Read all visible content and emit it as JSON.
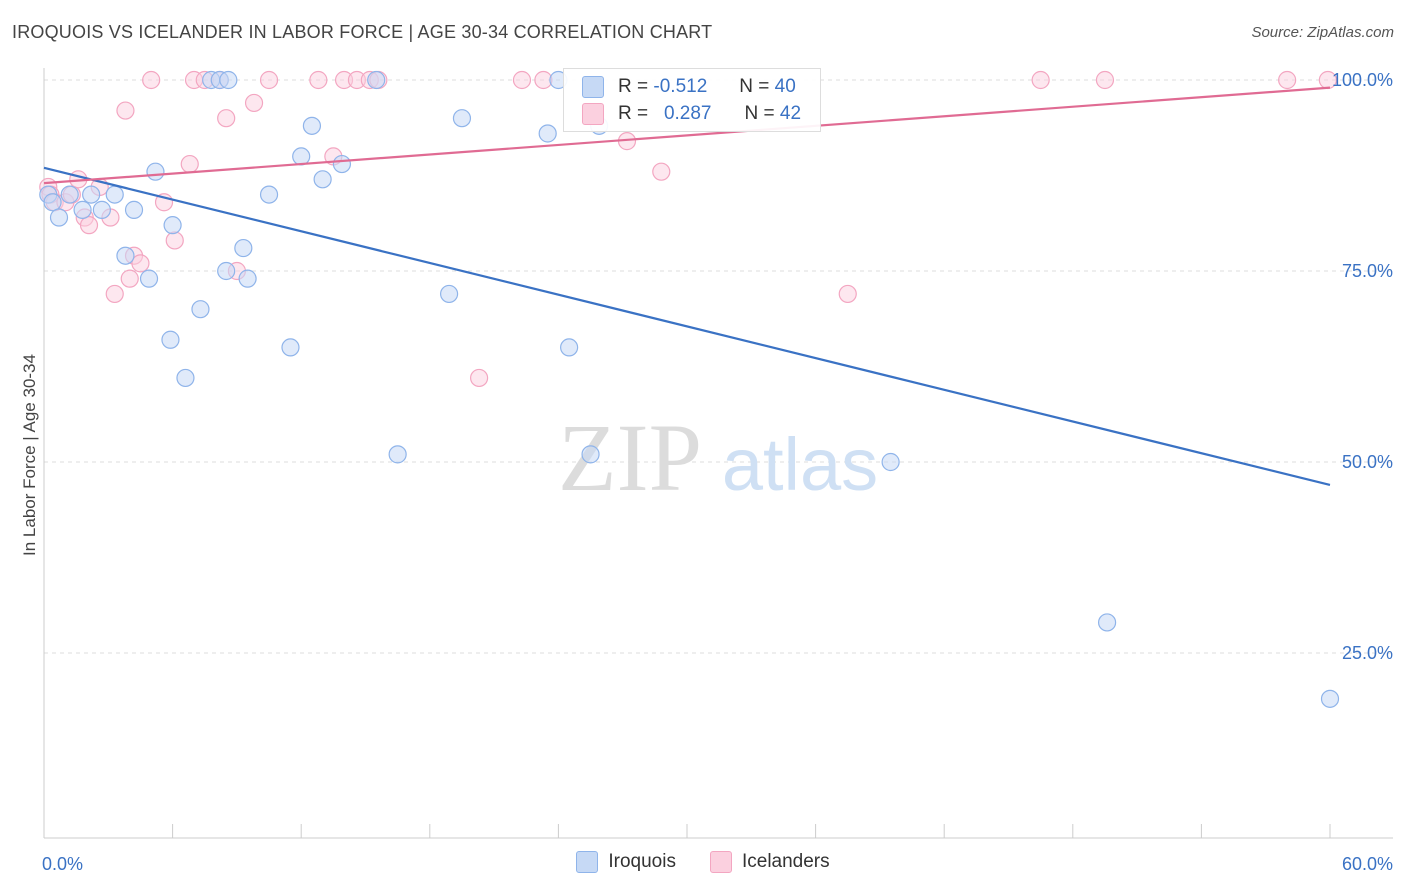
{
  "title": "IROQUOIS VS ICELANDER IN LABOR FORCE | AGE 30-34 CORRELATION CHART",
  "source": "Source: ZipAtlas.com",
  "watermark": {
    "zip": "ZIP",
    "atlas": "atlas"
  },
  "colors": {
    "iroquois": "#8fb4ea",
    "iroquois_line": "#3a72c4",
    "icelanders": "#f3a6c1",
    "icelanders_line": "#e06b93",
    "axis_label": "#3a72c4"
  },
  "stats": {
    "rows": [
      {
        "r_label": "R =",
        "r_value": "-0.512",
        "n_label": "N =",
        "n_value": "40"
      },
      {
        "r_label": "R =",
        "r_value": "0.287",
        "n_label": "N =",
        "n_value": "42"
      }
    ]
  },
  "chart_data": {
    "type": "scatter",
    "title": "IROQUOIS VS ICELANDER IN LABOR FORCE | AGE 30-34 CORRELATION CHART",
    "xlabel": "",
    "ylabel": "In Labor Force | Age 30-34",
    "xlim": [
      0,
      60
    ],
    "ylim": [
      0,
      104
    ],
    "x_tick_labels": [
      "0.0%",
      "60.0%"
    ],
    "y_ticks": [
      25,
      50,
      75,
      100
    ],
    "y_tick_labels": [
      "25.0%",
      "50.0%",
      "75.0%",
      "100.0%"
    ],
    "grid": true,
    "legend_placement": "bottom",
    "series": [
      {
        "name": "Iroquois",
        "points": [
          [
            0.2,
            85
          ],
          [
            0.4,
            84
          ],
          [
            0.7,
            82
          ],
          [
            1.2,
            85
          ],
          [
            1.8,
            83
          ],
          [
            2.2,
            85
          ],
          [
            2.7,
            83
          ],
          [
            3.3,
            85
          ],
          [
            3.8,
            77
          ],
          [
            4.2,
            83
          ],
          [
            4.9,
            74
          ],
          [
            5.2,
            88
          ],
          [
            5.9,
            66
          ],
          [
            6.0,
            81
          ],
          [
            6.6,
            61
          ],
          [
            7.3,
            70
          ],
          [
            7.8,
            100
          ],
          [
            8.2,
            100
          ],
          [
            8.5,
            75
          ],
          [
            8.6,
            100
          ],
          [
            9.5,
            74
          ],
          [
            9.3,
            78
          ],
          [
            10.5,
            85
          ],
          [
            11.5,
            65
          ],
          [
            12.0,
            90
          ],
          [
            12.5,
            94
          ],
          [
            13.0,
            87
          ],
          [
            13.9,
            89
          ],
          [
            15.5,
            100
          ],
          [
            16.5,
            51
          ],
          [
            18.9,
            72
          ],
          [
            19.5,
            95
          ],
          [
            23.5,
            93
          ],
          [
            24.0,
            100
          ],
          [
            24.5,
            65
          ],
          [
            25.5,
            51
          ],
          [
            25.9,
            94
          ],
          [
            39.5,
            50
          ],
          [
            49.6,
            29
          ],
          [
            60.0,
            19
          ]
        ]
      },
      {
        "name": "Icelanders",
        "points": [
          [
            0.2,
            86
          ],
          [
            0.3,
            85
          ],
          [
            0.5,
            84
          ],
          [
            1.0,
            84
          ],
          [
            1.3,
            85
          ],
          [
            1.6,
            87
          ],
          [
            1.9,
            82
          ],
          [
            2.1,
            81
          ],
          [
            2.6,
            86
          ],
          [
            3.1,
            82
          ],
          [
            3.3,
            72
          ],
          [
            3.8,
            96
          ],
          [
            4.0,
            74
          ],
          [
            4.2,
            77
          ],
          [
            4.5,
            76
          ],
          [
            5.0,
            100
          ],
          [
            5.6,
            84
          ],
          [
            6.1,
            79
          ],
          [
            6.8,
            89
          ],
          [
            7.0,
            100
          ],
          [
            7.5,
            100
          ],
          [
            8.2,
            100
          ],
          [
            8.5,
            95
          ],
          [
            9.0,
            75
          ],
          [
            9.8,
            97
          ],
          [
            10.5,
            100
          ],
          [
            12.8,
            100
          ],
          [
            13.5,
            90
          ],
          [
            14.0,
            100
          ],
          [
            14.6,
            100
          ],
          [
            15.2,
            100
          ],
          [
            15.6,
            100
          ],
          [
            20.3,
            61
          ],
          [
            22.3,
            100
          ],
          [
            23.3,
            100
          ],
          [
            27.2,
            92
          ],
          [
            28.8,
            88
          ],
          [
            37.5,
            72
          ],
          [
            46.5,
            100
          ],
          [
            49.5,
            100
          ],
          [
            58.0,
            100
          ],
          [
            59.9,
            100
          ]
        ]
      }
    ],
    "trendlines": [
      {
        "series": "Iroquois",
        "x": [
          0,
          60
        ],
        "y": [
          88.5,
          47
        ]
      },
      {
        "series": "Icelanders",
        "x": [
          0,
          60
        ],
        "y": [
          86.5,
          99
        ]
      }
    ]
  },
  "legend": [
    {
      "label": "Iroquois"
    },
    {
      "label": "Icelanders"
    }
  ]
}
